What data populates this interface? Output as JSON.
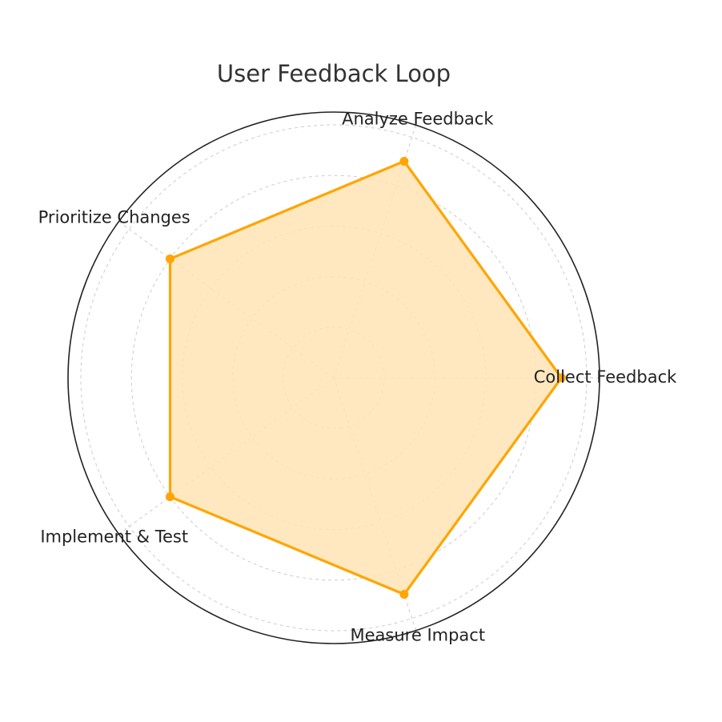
{
  "chart_data": {
    "type": "radar",
    "title": "User Feedback Loop",
    "categories": [
      "Collect Feedback",
      "Analyze Feedback",
      "Prioritize Changes",
      "Implement & Test",
      "Measure Impact"
    ],
    "series": [
      {
        "name": "User Feedback Loop",
        "values": [
          9,
          9,
          8,
          8,
          9
        ]
      }
    ],
    "rlim": [
      0,
      10
    ],
    "rticks": [
      2,
      4,
      6,
      8,
      10
    ],
    "grid": true,
    "colors": {
      "line": "#FFA500",
      "fill": "#FFE4B5",
      "frame": "#222222",
      "grid": "#CCCCCC"
    }
  }
}
